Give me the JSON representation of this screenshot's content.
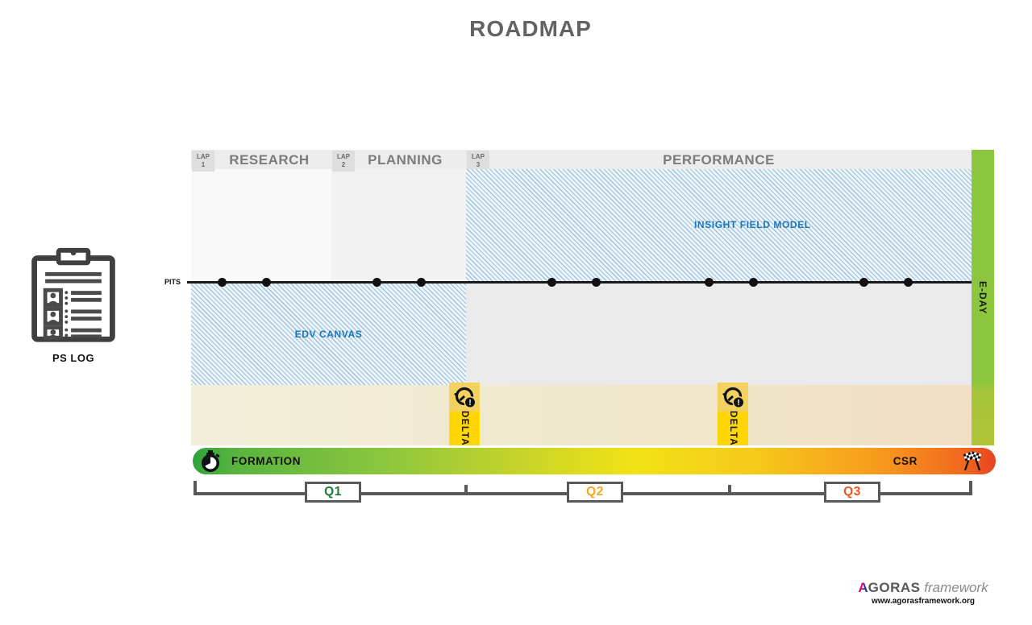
{
  "title": "ROADMAP",
  "ps_log": {
    "label": "PS LOG"
  },
  "phases": [
    {
      "lap_label": "LAP",
      "lap_number": "1",
      "name": "RESEARCH"
    },
    {
      "lap_label": "LAP",
      "lap_number": "2",
      "name": "PLANNING"
    },
    {
      "lap_label": "LAP",
      "lap_number": "3",
      "name": "PERFORMANCE"
    }
  ],
  "timeline": {
    "pits_label": "PITS",
    "dot_positions": [
      38,
      93,
      230,
      285,
      447,
      502,
      642,
      697,
      834,
      889
    ]
  },
  "regions": {
    "edv_canvas": {
      "label": "EDV CANVAS"
    },
    "insight_field_model": {
      "label": "INSIGHT FIELD MODEL"
    }
  },
  "eday": {
    "label": "E-DAY",
    "color": "#8CC63E"
  },
  "deltas": [
    {
      "label": "DELTA",
      "icon": "alert-clock-icon"
    },
    {
      "label": "DELTA",
      "icon": "alert-clock-icon"
    }
  ],
  "progress_bar": {
    "start_label": "FORMATION",
    "end_label": "CSR",
    "start_icon": "stopwatch-icon",
    "end_icon": "checkered-flags-icon",
    "gradient": [
      "#2FA23C",
      "#8CC63E",
      "#F2E214",
      "#F79C1C",
      "#E8431F"
    ]
  },
  "quarters": [
    {
      "label": "Q1",
      "color": "#1E7B33"
    },
    {
      "label": "Q2",
      "color": "#F5A71F"
    },
    {
      "label": "Q3",
      "color": "#F1551D"
    }
  ],
  "footer": {
    "brand_first_letter": "A",
    "brand_rest": "GORAS",
    "brand_suffix": "framework",
    "url": "www.agorasframework.org"
  }
}
